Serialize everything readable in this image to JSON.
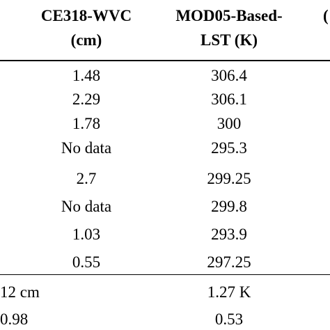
{
  "header": {
    "col1_line1": "CE318-WVC",
    "col1_line2": "(cm)",
    "col2_line1": "MOD05-Based-",
    "col2_line2": "LST (K)",
    "partial_glyph": "("
  },
  "rows": [
    {
      "wvc": "1.48",
      "lst": "306.4"
    },
    {
      "wvc": "2.29",
      "lst": "306.1"
    },
    {
      "wvc": "1.78",
      "lst": "300"
    },
    {
      "wvc": "No data",
      "lst": "295.3"
    },
    {
      "wvc": "2.7",
      "lst": "299.25"
    },
    {
      "wvc": "No data",
      "lst": "299.8"
    },
    {
      "wvc": "1.03",
      "lst": "293.9"
    },
    {
      "wvc": "0.55",
      "lst": "297.25"
    }
  ],
  "summary": [
    {
      "left": "12 cm",
      "right": "1.27 K"
    },
    {
      "left": "0.98",
      "right": "0.53"
    }
  ]
}
